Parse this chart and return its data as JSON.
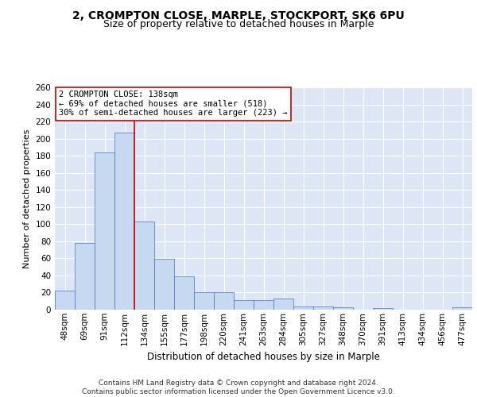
{
  "title1": "2, CROMPTON CLOSE, MARPLE, STOCKPORT, SK6 6PU",
  "title2": "Size of property relative to detached houses in Marple",
  "xlabel": "Distribution of detached houses by size in Marple",
  "ylabel": "Number of detached properties",
  "categories": [
    "48sqm",
    "69sqm",
    "91sqm",
    "112sqm",
    "134sqm",
    "155sqm",
    "177sqm",
    "198sqm",
    "220sqm",
    "241sqm",
    "263sqm",
    "284sqm",
    "305sqm",
    "327sqm",
    "348sqm",
    "370sqm",
    "391sqm",
    "413sqm",
    "434sqm",
    "456sqm",
    "477sqm"
  ],
  "values": [
    22,
    78,
    184,
    207,
    103,
    59,
    39,
    20,
    20,
    11,
    11,
    13,
    4,
    4,
    3,
    0,
    2,
    0,
    0,
    0,
    3
  ],
  "bar_color": "#c6d9f1",
  "bar_edge_color": "#4472c4",
  "vline_x": 3.5,
  "vline_color": "#cc0000",
  "annotation_text": "2 CROMPTON CLOSE: 138sqm\n← 69% of detached houses are smaller (518)\n30% of semi-detached houses are larger (223) →",
  "annotation_box_color": "#ffffff",
  "annotation_box_edge_color": "#cc0000",
  "ylim": [
    0,
    260
  ],
  "yticks": [
    0,
    20,
    40,
    60,
    80,
    100,
    120,
    140,
    160,
    180,
    200,
    220,
    240,
    260
  ],
  "bg_color": "#dce6f5",
  "fig_bg_color": "#ffffff",
  "footer_text": "Contains HM Land Registry data © Crown copyright and database right 2024.\nContains public sector information licensed under the Open Government Licence v3.0.",
  "title1_fontsize": 10,
  "title2_fontsize": 9,
  "xlabel_fontsize": 8.5,
  "ylabel_fontsize": 8,
  "tick_fontsize": 7.5,
  "annotation_fontsize": 7.5,
  "footer_fontsize": 6.5
}
